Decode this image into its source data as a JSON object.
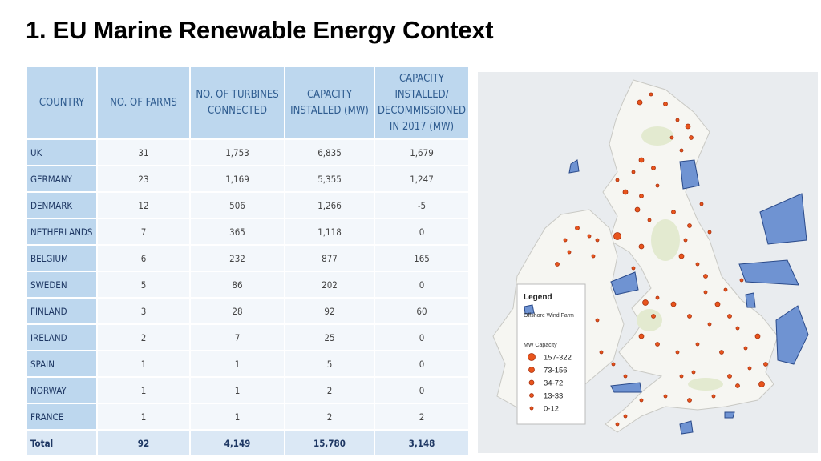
{
  "title": "1. EU Marine Renewable Energy Context",
  "table": {
    "headers": [
      "COUNTRY",
      "NO. OF FARMS",
      "NO. OF TURBINES CONNECTED",
      "CAPACITY INSTALLED (MW)",
      "CAPACITY INSTALLED/ DECOMMISSIONED IN 2017 (MW)"
    ],
    "rows": [
      [
        "UK",
        "31",
        "1,753",
        "6,835",
        "1,679"
      ],
      [
        "GERMANY",
        "23",
        "1,169",
        "5,355",
        "1,247"
      ],
      [
        "DENMARK",
        "12",
        "506",
        "1,266",
        "-5"
      ],
      [
        "NETHERLANDS",
        "7",
        "365",
        "1,118",
        "0"
      ],
      [
        "BELGIUM",
        "6",
        "232",
        "877",
        "165"
      ],
      [
        "SWEDEN",
        "5",
        "86",
        "202",
        "0"
      ],
      [
        "FINLAND",
        "3",
        "28",
        "92",
        "60"
      ],
      [
        "IRELAND",
        "2",
        "7",
        "25",
        "0"
      ],
      [
        "SPAIN",
        "1",
        "1",
        "5",
        "0"
      ],
      [
        "NORWAY",
        "1",
        "1",
        "2",
        "0"
      ],
      [
        "FRANCE",
        "1",
        "1",
        "2",
        "2"
      ]
    ],
    "total": [
      "Total",
      "92",
      "4,149",
      "15,780",
      "3,148"
    ]
  },
  "map": {
    "legend": {
      "title": "Legend",
      "farm_label": "Offshore Wind Farm",
      "capacity_title": "MW Capacity",
      "classes": [
        "157-322",
        "73-156",
        "34-72",
        "13-33",
        "0-12"
      ]
    }
  }
}
